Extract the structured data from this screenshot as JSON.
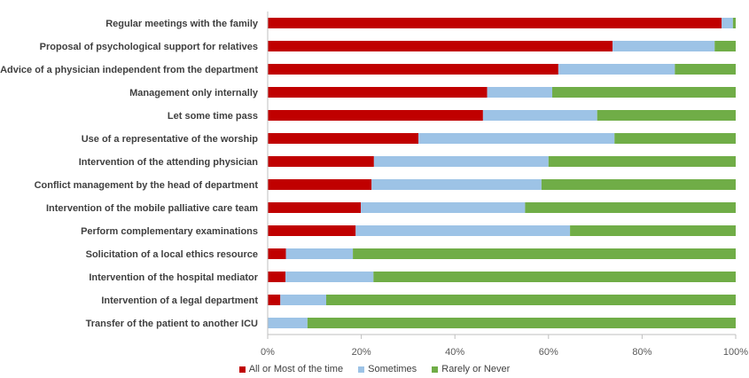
{
  "chart_data": {
    "type": "bar",
    "orientation": "horizontal",
    "stacked": "100%",
    "categories": [
      "Regular meetings with the family",
      "Proposal of psychological support for relatives",
      "Advice of a physician independent from the department",
      "Management only internally",
      "Let some time pass",
      "Use of a representative of the worship",
      "Intervention of the attending physician",
      "Conflict management by the head of department",
      "Intervention of the mobile palliative care team",
      "Perform complementary examinations",
      "Solicitation of a local ethics resource",
      "Intervention of the hospital mediator",
      "Intervention of a legal department",
      "Transfer of the patient to another ICU"
    ],
    "series": [
      {
        "name": "All or Most of the time",
        "color": "#C00000",
        "values": [
          97,
          73.7,
          62.1,
          46.9,
          46,
          32.2,
          22.7,
          22.2,
          19.9,
          18.8,
          3.9,
          3.8,
          2.7,
          0
        ]
      },
      {
        "name": "Sometimes",
        "color": "#9DC3E6",
        "values": [
          2.4,
          21.8,
          24.9,
          13.9,
          24.4,
          41.9,
          37.3,
          36.3,
          35.1,
          45.8,
          14.3,
          18.8,
          9.8,
          8.5
        ]
      },
      {
        "name": "Rarely or Never",
        "color": "#70AD47",
        "values": [
          0.6,
          4.5,
          13,
          39.2,
          29.6,
          25.9,
          40,
          41.5,
          45,
          35.4,
          81.8,
          77.4,
          87.5,
          91.5
        ]
      }
    ],
    "xticks": [
      "0%",
      "20%",
      "40%",
      "60%",
      "80%",
      "100%"
    ],
    "xlim": [
      0,
      100
    ],
    "xlabel": "",
    "ylabel": "",
    "title": "",
    "grid": false,
    "legend_position": "bottom"
  }
}
